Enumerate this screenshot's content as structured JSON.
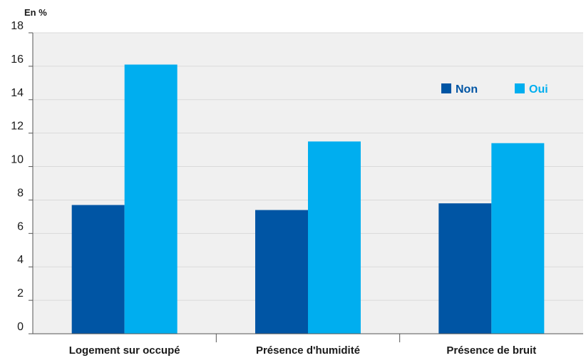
{
  "chart_data": {
    "type": "bar",
    "unit_label": "En %",
    "categories": [
      "Logement sur occupé",
      "Présence d'humidité",
      "Présence de bruit"
    ],
    "series": [
      {
        "name": "Non",
        "values": [
          7.7,
          7.4,
          7.8
        ],
        "color": "#0055a4"
      },
      {
        "name": "Oui",
        "values": [
          16.1,
          11.5,
          11.4
        ],
        "color": "#00aeef"
      }
    ],
    "ylim": [
      0,
      18
    ],
    "yticks": [
      "0",
      "2",
      "4",
      "6",
      "8",
      "10",
      "12",
      "14",
      "16",
      "18"
    ],
    "grid": true,
    "legend": "top-right",
    "plot_background": "#f0f0f0",
    "gridline_color": "#dadada"
  }
}
